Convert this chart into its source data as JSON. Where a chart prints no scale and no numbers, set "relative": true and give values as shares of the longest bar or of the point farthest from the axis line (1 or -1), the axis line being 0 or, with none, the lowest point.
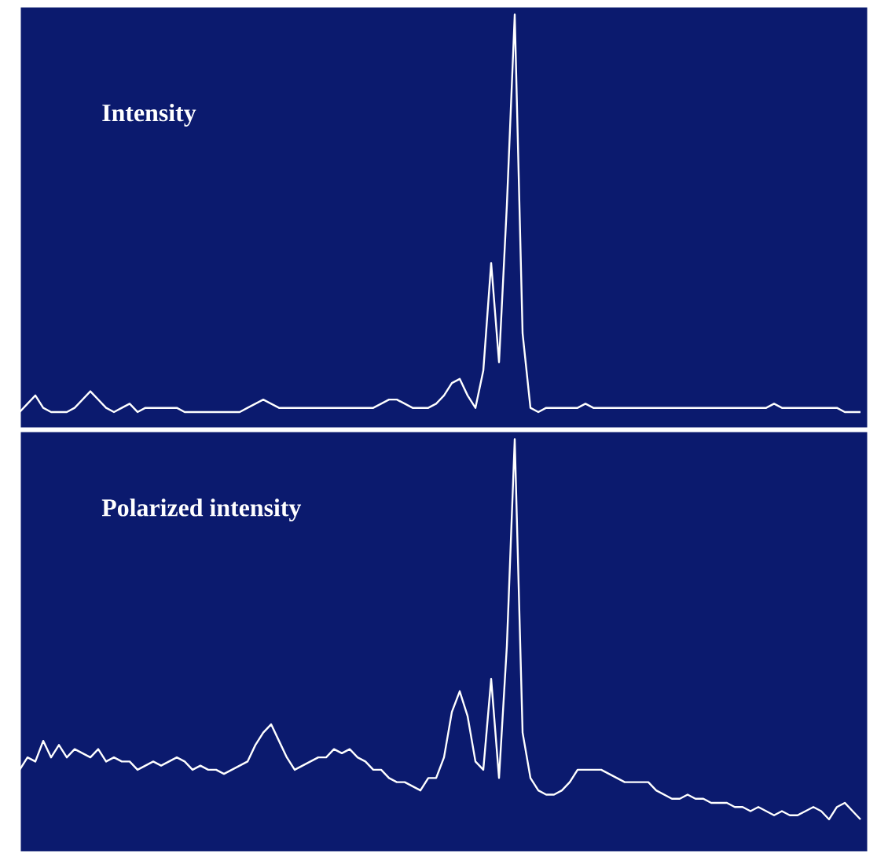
{
  "chart_data": [
    {
      "type": "line",
      "relative": true,
      "title": "Intensity",
      "marker": "none",
      "line_style": "solid",
      "categories": [
        null,
        null,
        null,
        null,
        null,
        null,
        null,
        null,
        null,
        null,
        null,
        null,
        null,
        null,
        null,
        null,
        null,
        null,
        null,
        null,
        null,
        null,
        null,
        null,
        null,
        null,
        null,
        null,
        null,
        null,
        null,
        null,
        null,
        null,
        null,
        null,
        null,
        null,
        null,
        null,
        null,
        null,
        null,
        null,
        null,
        null,
        null,
        null,
        null,
        null,
        null,
        null,
        null,
        null,
        null,
        null,
        null,
        null,
        null,
        null,
        null,
        null,
        null,
        null,
        null,
        null,
        null,
        null,
        null,
        null,
        null,
        null,
        null,
        null,
        null,
        null,
        null,
        null,
        null,
        null,
        null,
        null,
        null,
        null,
        null,
        null,
        null,
        null,
        null,
        null,
        null,
        null,
        null,
        null,
        null,
        null,
        null,
        null,
        null,
        null,
        null,
        null,
        null,
        null,
        null,
        null,
        null,
        null
      ],
      "series": [
        {
          "color": "#ffffff",
          "values": [
            0.04,
            0.06,
            0.08,
            0.05,
            0.04,
            0.04,
            0.04,
            0.05,
            0.07,
            0.09,
            0.07,
            0.05,
            0.04,
            0.05,
            0.06,
            0.04,
            0.05,
            0.05,
            0.05,
            0.05,
            0.05,
            0.04,
            0.04,
            0.04,
            0.04,
            0.04,
            0.04,
            0.04,
            0.04,
            0.05,
            0.06,
            0.07,
            0.06,
            0.05,
            0.05,
            0.05,
            0.05,
            0.05,
            0.05,
            0.05,
            0.05,
            0.05,
            0.05,
            0.05,
            0.05,
            0.05,
            0.06,
            0.07,
            0.07,
            0.06,
            0.05,
            0.05,
            0.05,
            0.06,
            0.08,
            0.11,
            0.12,
            0.08,
            0.05,
            0.14,
            0.4,
            0.16,
            0.54,
            1,
            0.23,
            0.05,
            0.04,
            0.05,
            0.05,
            0.05,
            0.05,
            0.05,
            0.06,
            0.05,
            0.05,
            0.05,
            0.05,
            0.05,
            0.05,
            0.05,
            0.05,
            0.05,
            0.05,
            0.05,
            0.05,
            0.05,
            0.05,
            0.05,
            0.05,
            0.05,
            0.05,
            0.05,
            0.05,
            0.05,
            0.05,
            0.05,
            0.06,
            0.05,
            0.05,
            0.05,
            0.05,
            0.05,
            0.05,
            0.05,
            0.05,
            0.04,
            0.04,
            0.04
          ]
        }
      ]
    },
    {
      "type": "line",
      "relative": true,
      "title": "Polarized intensity",
      "marker": "none",
      "line_style": "solid",
      "categories": [
        null,
        null,
        null,
        null,
        null,
        null,
        null,
        null,
        null,
        null,
        null,
        null,
        null,
        null,
        null,
        null,
        null,
        null,
        null,
        null,
        null,
        null,
        null,
        null,
        null,
        null,
        null,
        null,
        null,
        null,
        null,
        null,
        null,
        null,
        null,
        null,
        null,
        null,
        null,
        null,
        null,
        null,
        null,
        null,
        null,
        null,
        null,
        null,
        null,
        null,
        null,
        null,
        null,
        null,
        null,
        null,
        null,
        null,
        null,
        null,
        null,
        null,
        null,
        null,
        null,
        null,
        null,
        null,
        null,
        null,
        null,
        null,
        null,
        null,
        null,
        null,
        null,
        null,
        null,
        null,
        null,
        null,
        null,
        null,
        null,
        null,
        null,
        null,
        null,
        null,
        null,
        null,
        null,
        null,
        null,
        null,
        null,
        null,
        null,
        null,
        null,
        null,
        null,
        null,
        null,
        null,
        null,
        null
      ],
      "series": [
        {
          "color": "#ffffff",
          "values": [
            0.2,
            0.23,
            0.22,
            0.27,
            0.23,
            0.26,
            0.23,
            0.25,
            0.24,
            0.23,
            0.25,
            0.22,
            0.23,
            0.22,
            0.22,
            0.2,
            0.21,
            0.22,
            0.21,
            0.22,
            0.23,
            0.22,
            0.2,
            0.21,
            0.2,
            0.2,
            0.19,
            0.2,
            0.21,
            0.22,
            0.26,
            0.29,
            0.31,
            0.27,
            0.23,
            0.2,
            0.21,
            0.22,
            0.23,
            0.23,
            0.25,
            0.24,
            0.25,
            0.23,
            0.22,
            0.2,
            0.2,
            0.18,
            0.17,
            0.17,
            0.16,
            0.15,
            0.18,
            0.18,
            0.23,
            0.34,
            0.39,
            0.33,
            0.22,
            0.2,
            0.42,
            0.18,
            0.5,
            1,
            0.29,
            0.18,
            0.15,
            0.14,
            0.14,
            0.15,
            0.17,
            0.2,
            0.2,
            0.2,
            0.2,
            0.19,
            0.18,
            0.17,
            0.17,
            0.17,
            0.17,
            0.15,
            0.14,
            0.13,
            0.13,
            0.14,
            0.13,
            0.13,
            0.12,
            0.12,
            0.12,
            0.11,
            0.11,
            0.1,
            0.11,
            0.1,
            0.09,
            0.1,
            0.09,
            0.09,
            0.1,
            0.11,
            0.1,
            0.08,
            0.11,
            0.12,
            0.1,
            0.08
          ]
        }
      ]
    }
  ]
}
